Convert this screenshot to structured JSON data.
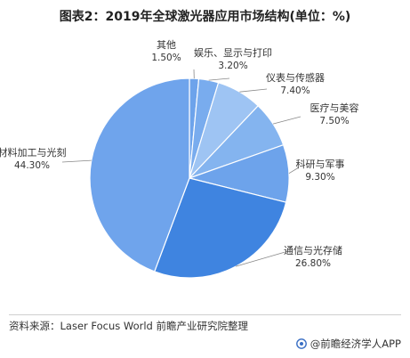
{
  "title": "图表2：2019年全球激光器应用市场结构(单位：%)",
  "footer": {
    "source": "资料来源：Laser Focus World 前瞻产业研究院整理",
    "brand": "@前瞻经济学人APP"
  },
  "colors": {
    "dark_blue": "#3f84e0",
    "mid_blue": "#6da3eb",
    "light_blue": "#9ec4f3",
    "leader": "#888888"
  },
  "chart_data": {
    "type": "pie",
    "title": "图表2：2019年全球激光器应用市场结构(单位：%)",
    "slices": [
      {
        "label": "其他",
        "value": 1.5,
        "value_label": "1.50%",
        "color": "#6da3eb"
      },
      {
        "label": "娱乐、显示与打印",
        "value": 3.2,
        "value_label": "3.20%",
        "color": "#79acee"
      },
      {
        "label": "仪表与传感器",
        "value": 7.4,
        "value_label": "7.40%",
        "color": "#9ec4f3"
      },
      {
        "label": "医疗与美容",
        "value": 7.5,
        "value_label": "7.50%",
        "color": "#84b4ef"
      },
      {
        "label": "科研与军事",
        "value": 9.3,
        "value_label": "9.30%",
        "color": "#6da3eb"
      },
      {
        "label": "通信与光存储",
        "value": 26.8,
        "value_label": "26.80%",
        "color": "#3f84e0"
      },
      {
        "label": "材料加工与光刻",
        "value": 44.3,
        "value_label": "44.30%",
        "color": "#6fa4ec"
      }
    ]
  }
}
